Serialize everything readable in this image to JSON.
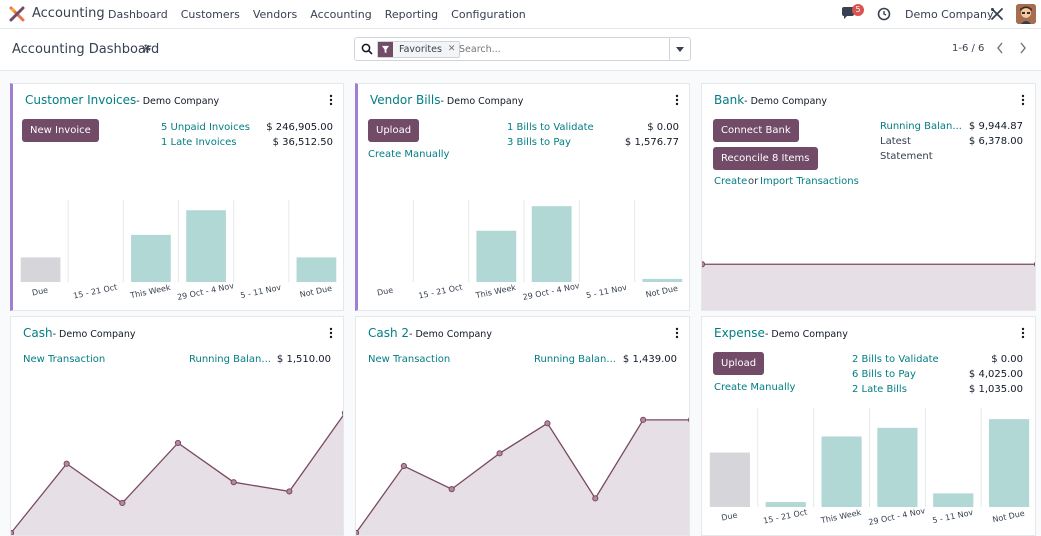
{
  "app": {
    "name": "Accounting"
  },
  "nav": {
    "menu": [
      "Dashboard",
      "Customers",
      "Vendors",
      "Accounting",
      "Reporting",
      "Configuration"
    ],
    "chat_count": "5",
    "company": "Demo Company"
  },
  "control": {
    "title": "Accounting Dashboard",
    "facet": "Favorites",
    "search_placeholder": "Search...",
    "pager": "1-6 / 6"
  },
  "cards": {
    "customer_invoices": {
      "title": "Customer Invoices",
      "company": "- Demo Company",
      "button": "New Invoice",
      "stats": [
        {
          "label": "5 Unpaid Invoices",
          "amount": "$ 246,905.00"
        },
        {
          "label": "1 Late Invoices",
          "amount": "$ 36,512.50"
        }
      ]
    },
    "vendor_bills": {
      "title": "Vendor Bills",
      "company": "- Demo Company",
      "button": "Upload",
      "create_link": "Create Manually",
      "stats": [
        {
          "label": "1 Bills to Validate",
          "amount": "$ 0.00"
        },
        {
          "label": "3 Bills to Pay",
          "amount": "$ 1,576.77"
        }
      ]
    },
    "bank": {
      "title": "Bank",
      "company": "- Demo Company",
      "button_connect": "Connect Bank",
      "button_reconcile": "Reconcile 8 Items",
      "create_link": "Create",
      "or_text": "or",
      "import_link": "Import Transactions",
      "running_label": "Running Balan...",
      "running_amount": "$ 9,944.87",
      "latest_label": "Latest",
      "statement_label": "Statement",
      "latest_amount": "$ 6,378.00"
    },
    "cash": {
      "title": "Cash",
      "company": "- Demo Company",
      "new_transaction": "New Transaction",
      "running_label": "Running Balan...",
      "running_amount": "$ 1,510.00"
    },
    "cash2": {
      "title": "Cash 2",
      "company": "- Demo Company",
      "new_transaction": "New Transaction",
      "running_label": "Running Balan...",
      "running_amount": "$ 1,439.00"
    },
    "expense": {
      "title": "Expense",
      "company": "- Demo Company",
      "button": "Upload",
      "create_link": "Create Manually",
      "stats": [
        {
          "label": "2 Bills to Validate",
          "amount": "$ 0.00"
        },
        {
          "label": "6 Bills to Pay",
          "amount": "$ 4,025.00"
        },
        {
          "label": "2 Late Bills",
          "amount": "$ 1,035.00"
        }
      ]
    }
  },
  "colors": {
    "primary": "#714b67",
    "link": "#017e84",
    "bar_teal": "#b2d8d6",
    "bar_grey": "#d6d6da",
    "line": "#7a4a63",
    "area": "#e6dfe5",
    "accent_border": "#9e7fd1"
  },
  "chart_data": [
    {
      "id": "customer_invoices_chart",
      "type": "bar",
      "categories": [
        "Due",
        "15 - 21 Oct",
        "This Week",
        "29 Oct - 4 Nov",
        "5 - 11 Nov",
        "Not Due"
      ],
      "values": [
        24,
        0,
        46,
        70,
        0,
        24
      ],
      "ylim": [
        0,
        80
      ]
    },
    {
      "id": "vendor_bills_chart",
      "type": "bar",
      "categories": [
        "Due",
        "15 - 21 Oct",
        "This Week",
        "29 Oct - 4 Nov",
        "5 - 11 Nov",
        "Not Due"
      ],
      "values": [
        0,
        0,
        50,
        74,
        0,
        3
      ],
      "ylim": [
        0,
        80
      ]
    },
    {
      "id": "bank_chart",
      "type": "area",
      "values": [
        1,
        1
      ],
      "ylim": [
        0,
        1.6
      ]
    },
    {
      "id": "cash_chart",
      "type": "area",
      "values": [
        0,
        60,
        26,
        78,
        44,
        36,
        104
      ],
      "ylim": [
        0,
        110
      ]
    },
    {
      "id": "cash2_chart",
      "type": "area",
      "values": [
        0,
        58,
        38,
        69,
        95,
        30,
        98,
        98
      ],
      "ylim": [
        0,
        110
      ]
    },
    {
      "id": "expense_chart",
      "type": "bar",
      "categories": [
        "Due",
        "15 - 21 Oct",
        "This Week",
        "29 Oct - 4 Nov",
        "5 - 11 Nov",
        "Not Due"
      ],
      "values": [
        44,
        4,
        57,
        64,
        11,
        71
      ],
      "ylim": [
        0,
        80
      ]
    }
  ]
}
